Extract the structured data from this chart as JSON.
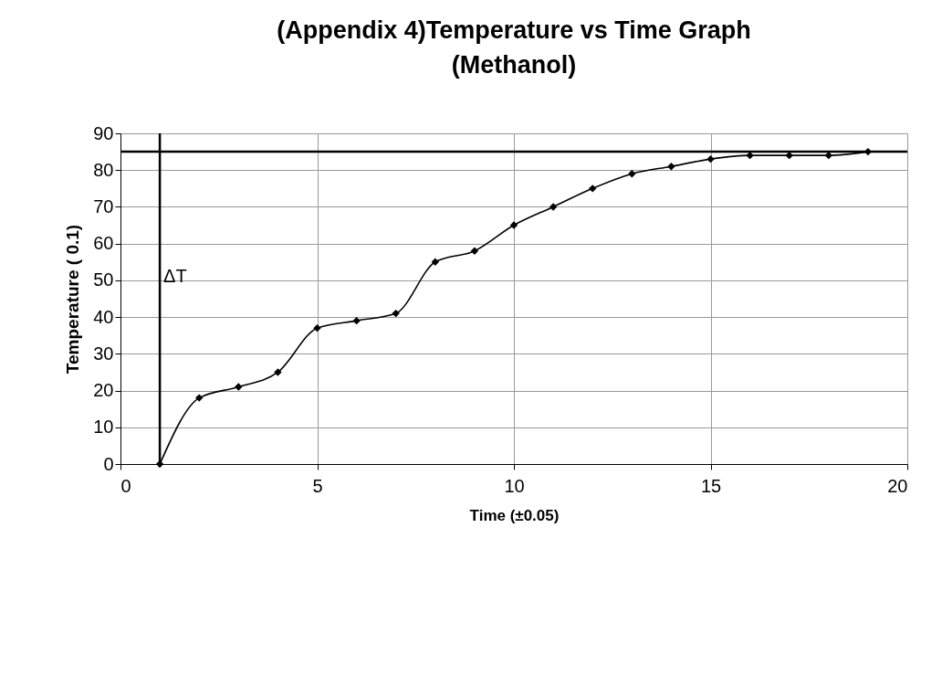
{
  "chart_data": {
    "type": "line",
    "title": "(Appendix 4)Temperature vs Time Graph\n(Methanol)",
    "xlabel": "Time (±0.05)",
    "ylabel": "Temperature ( 0.1)",
    "x": [
      1,
      2,
      3,
      4,
      5,
      6,
      7,
      8,
      9,
      10,
      11,
      12,
      13,
      14,
      15,
      16,
      17,
      18,
      19
    ],
    "series": [
      {
        "color": "#000000",
        "values": [
          0,
          18,
          21,
          25,
          37,
          39,
          41,
          55,
          58,
          65,
          70,
          75,
          79,
          81,
          83,
          84,
          84,
          84,
          85
        ]
      }
    ],
    "xlim": [
      0,
      20
    ],
    "xticks": [
      0,
      5,
      10,
      15,
      20
    ],
    "ylim": [
      0,
      90
    ],
    "yticks": [
      0,
      10,
      20,
      30,
      40,
      50,
      60,
      70,
      80,
      90
    ],
    "ref_lines": [
      {
        "axis": "x",
        "value": 1,
        "label": "ΔT"
      },
      {
        "axis": "y",
        "value": 85
      }
    ],
    "grid": true,
    "marker": "diamond",
    "line_style": "solid"
  }
}
